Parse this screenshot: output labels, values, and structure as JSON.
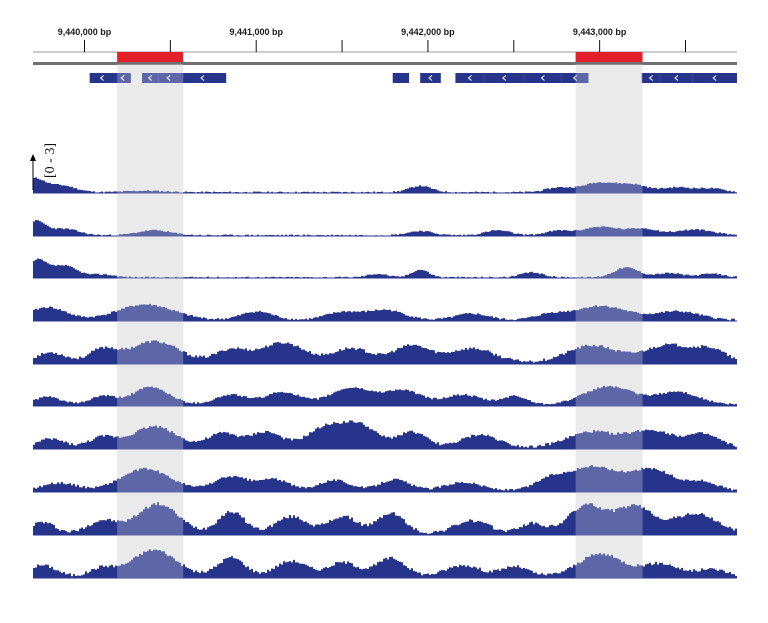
{
  "chart_data": {
    "type": "area",
    "genome_axis": {
      "unit": "bp",
      "range": [
        9439700,
        9443800
      ],
      "major_ticks": [
        {
          "pos": 9440000,
          "label": "9,440,000 bp"
        },
        {
          "pos": 9441000,
          "label": "9,441,000 bp"
        },
        {
          "pos": 9442000,
          "label": "9,442,000 bp"
        },
        {
          "pos": 9443000,
          "label": "9,443,000 bp"
        }
      ],
      "minor_ticks": [
        9440500,
        9441500,
        9442500,
        9443500
      ]
    },
    "highlight_regions": [
      [
        9440190,
        9440575
      ],
      [
        9442860,
        9443250
      ]
    ],
    "colors": {
      "region_bar": "#e3202a",
      "gene": "#27348b",
      "coverage": "#27348b",
      "highlight": "#e3e3e3",
      "axis_line": "#6f6f6f"
    },
    "gene_blocks": [
      [
        9440030,
        9440175,
        true
      ],
      [
        9440175,
        9440270,
        true
      ],
      [
        9440335,
        9440430,
        true
      ],
      [
        9440430,
        9440550,
        true
      ],
      [
        9440550,
        9440825,
        true
      ],
      [
        9441795,
        9441890,
        false
      ],
      [
        9441955,
        9442075,
        true
      ],
      [
        9442160,
        9442330,
        true
      ],
      [
        9442330,
        9442560,
        true
      ],
      [
        9442560,
        9442780,
        true
      ],
      [
        9442780,
        9442935,
        true
      ],
      [
        9443245,
        9443355,
        true
      ],
      [
        9443355,
        9443540,
        true
      ],
      [
        9443540,
        9443800,
        true
      ]
    ],
    "data_range_label": "[0 - 3]",
    "ylim": [
      0,
      3
    ],
    "tracks": [
      {
        "seed": 11,
        "base": 0.06,
        "noise": 0.05,
        "peaks": [
          [
            9439700,
            0.9,
            80
          ],
          [
            9439850,
            0.5,
            120
          ],
          [
            9440350,
            0.1,
            150
          ],
          [
            9441950,
            0.45,
            90
          ],
          [
            9442750,
            0.3,
            100
          ],
          [
            9443000,
            0.7,
            150
          ],
          [
            9443200,
            0.45,
            110
          ],
          [
            9443450,
            0.35,
            130
          ],
          [
            9443650,
            0.25,
            100
          ]
        ]
      },
      {
        "seed": 23,
        "base": 0.06,
        "noise": 0.05,
        "peaks": [
          [
            9439710,
            1.0,
            80
          ],
          [
            9439880,
            0.45,
            110
          ],
          [
            9440400,
            0.35,
            130
          ],
          [
            9441950,
            0.3,
            100
          ],
          [
            9442400,
            0.35,
            100
          ],
          [
            9442750,
            0.3,
            100
          ],
          [
            9443000,
            0.6,
            150
          ],
          [
            9443250,
            0.45,
            120
          ],
          [
            9443550,
            0.4,
            150
          ]
        ]
      },
      {
        "seed": 37,
        "base": 0.05,
        "noise": 0.05,
        "peaks": [
          [
            9439720,
            1.15,
            70
          ],
          [
            9439870,
            0.85,
            110
          ],
          [
            9440100,
            0.2,
            100
          ],
          [
            9441700,
            0.25,
            80
          ],
          [
            9441950,
            0.55,
            70
          ],
          [
            9442600,
            0.35,
            90
          ],
          [
            9443150,
            0.7,
            100
          ],
          [
            9443400,
            0.3,
            110
          ],
          [
            9443650,
            0.25,
            100
          ]
        ]
      },
      {
        "seed": 41,
        "base": 0.08,
        "noise": 0.07,
        "peaks": [
          [
            9439780,
            0.9,
            150
          ],
          [
            9440350,
            1.1,
            230
          ],
          [
            9441000,
            0.6,
            130
          ],
          [
            9441500,
            0.55,
            140
          ],
          [
            9441750,
            0.7,
            150
          ],
          [
            9442250,
            0.45,
            130
          ],
          [
            9442700,
            0.35,
            120
          ],
          [
            9443000,
            1.0,
            220
          ],
          [
            9443450,
            0.6,
            180
          ]
        ]
      },
      {
        "seed": 53,
        "base": 0.12,
        "noise": 0.1,
        "peaks": [
          [
            9439800,
            0.7,
            120
          ],
          [
            9440100,
            0.9,
            110
          ],
          [
            9440400,
            1.5,
            200
          ],
          [
            9440850,
            0.9,
            130
          ],
          [
            9441150,
            1.4,
            180
          ],
          [
            9441550,
            1.0,
            150
          ],
          [
            9441900,
            1.2,
            150
          ],
          [
            9442250,
            1.0,
            180
          ],
          [
            9442950,
            1.2,
            200
          ],
          [
            9443400,
            1.25,
            200
          ],
          [
            9443650,
            0.8,
            120
          ]
        ]
      },
      {
        "seed": 61,
        "base": 0.1,
        "noise": 0.07,
        "peaks": [
          [
            9439780,
            0.55,
            110
          ],
          [
            9440100,
            0.6,
            100
          ],
          [
            9440380,
            1.25,
            150
          ],
          [
            9440850,
            0.7,
            130
          ],
          [
            9441150,
            0.9,
            140
          ],
          [
            9441550,
            1.2,
            170
          ],
          [
            9441850,
            1.0,
            150
          ],
          [
            9442200,
            0.7,
            150
          ],
          [
            9442500,
            0.6,
            100
          ],
          [
            9443050,
            1.3,
            200
          ],
          [
            9443450,
            0.9,
            170
          ]
        ]
      },
      {
        "seed": 73,
        "base": 0.12,
        "noise": 0.1,
        "peaks": [
          [
            9439800,
            0.6,
            110
          ],
          [
            9440100,
            0.7,
            110
          ],
          [
            9440400,
            1.5,
            180
          ],
          [
            9440800,
            1.0,
            120
          ],
          [
            9441050,
            1.1,
            130
          ],
          [
            9441400,
            1.4,
            150
          ],
          [
            9441600,
            1.5,
            140
          ],
          [
            9441900,
            1.1,
            120
          ],
          [
            9442300,
            0.9,
            150
          ],
          [
            9442950,
            1.1,
            200
          ],
          [
            9443300,
            1.2,
            180
          ],
          [
            9443600,
            0.9,
            130
          ]
        ]
      },
      {
        "seed": 89,
        "base": 0.1,
        "noise": 0.08,
        "peaks": [
          [
            9439850,
            0.55,
            140
          ],
          [
            9440350,
            1.55,
            200
          ],
          [
            9440850,
            1.0,
            140
          ],
          [
            9441100,
            0.8,
            120
          ],
          [
            9441450,
            0.75,
            130
          ],
          [
            9441800,
            0.8,
            120
          ],
          [
            9442200,
            0.6,
            150
          ],
          [
            9442700,
            0.7,
            120
          ],
          [
            9442950,
            1.7,
            200
          ],
          [
            9443300,
            1.5,
            180
          ],
          [
            9443600,
            0.6,
            120
          ]
        ]
      },
      {
        "seed": 97,
        "base": 0.12,
        "noise": 0.12,
        "peaks": [
          [
            9439750,
            0.8,
            100
          ],
          [
            9440100,
            0.9,
            120
          ],
          [
            9440420,
            2.1,
            170
          ],
          [
            9440850,
            1.55,
            110
          ],
          [
            9441200,
            1.2,
            130
          ],
          [
            9441500,
            1.2,
            120
          ],
          [
            9441780,
            1.45,
            110
          ],
          [
            9442250,
            0.9,
            140
          ],
          [
            9442600,
            0.7,
            100
          ],
          [
            9442920,
            2.0,
            150
          ],
          [
            9443200,
            1.9,
            150
          ],
          [
            9443550,
            1.4,
            180
          ]
        ]
      },
      {
        "seed": 101,
        "base": 0.12,
        "noise": 0.11,
        "peaks": [
          [
            9439750,
            0.8,
            110
          ],
          [
            9440100,
            0.6,
            100
          ],
          [
            9440400,
            1.9,
            180
          ],
          [
            9440850,
            1.35,
            110
          ],
          [
            9441200,
            1.1,
            130
          ],
          [
            9441500,
            1.0,
            120
          ],
          [
            9441780,
            1.3,
            120
          ],
          [
            9442200,
            0.8,
            140
          ],
          [
            9442500,
            0.7,
            110
          ],
          [
            9443000,
            1.6,
            180
          ],
          [
            9443350,
            0.9,
            150
          ],
          [
            9443650,
            0.5,
            120
          ]
        ]
      }
    ]
  }
}
